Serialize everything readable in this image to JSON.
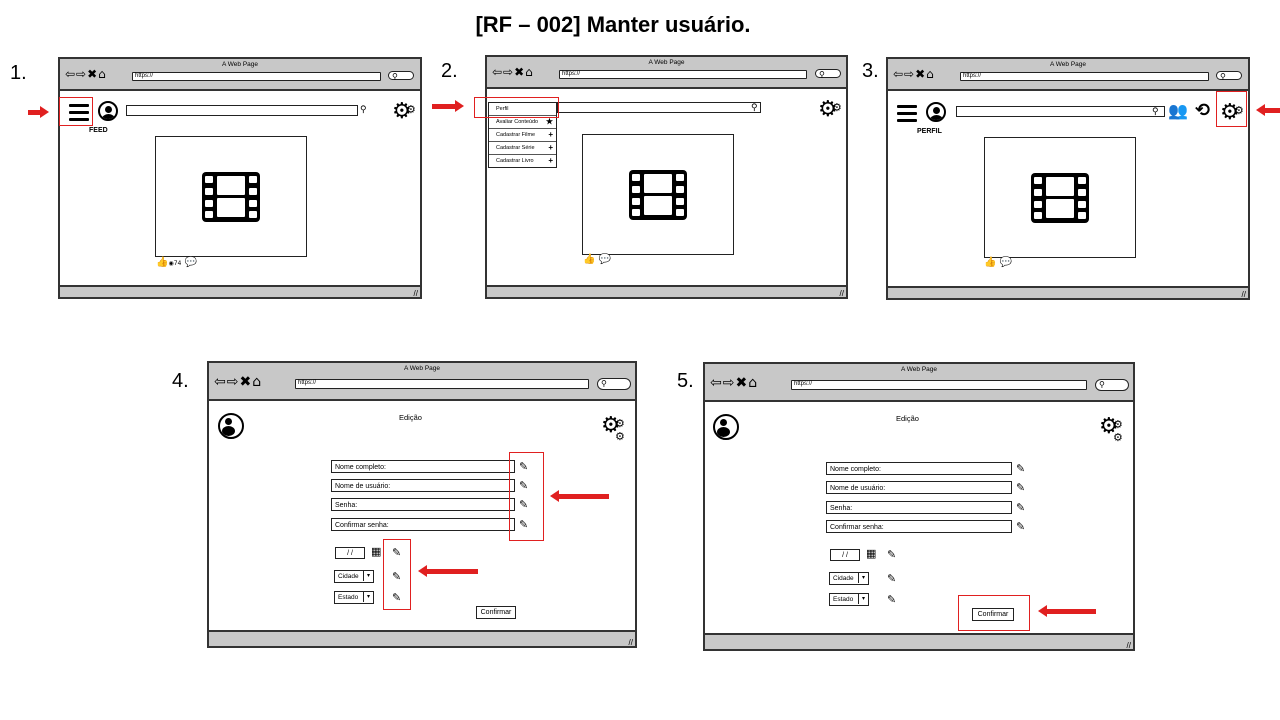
{
  "title": "[RF – 002] Manter usuário.",
  "steps": {
    "s1": "1.",
    "s2": "2.",
    "s3": "3.",
    "s4": "4.",
    "s5": "5."
  },
  "browser": {
    "window_title": "A Web Page",
    "url": "https://",
    "nav_icons": "⇦⇨✖⌂",
    "resize_glyph": "//"
  },
  "screen1": {
    "label": "FEED",
    "likes_count": "74"
  },
  "screen2": {
    "menu_items": [
      {
        "label": "Perfil",
        "icon": ""
      },
      {
        "label": "Avaliar Conteúdo",
        "icon": "★"
      },
      {
        "label": "Cadastrar Filme",
        "icon": "+"
      },
      {
        "label": "Cadastrar Série",
        "icon": "+"
      },
      {
        "label": "Cadastrar Livro",
        "icon": "+"
      }
    ]
  },
  "screen3": {
    "label": "PERFIL"
  },
  "edit_screen": {
    "title": "Edição",
    "fields": [
      "Nome completo:",
      "Nome de usuário:",
      "Senha:",
      "Confirmar senha:"
    ],
    "date_placeholder": "/ /",
    "city_select": "Cidade",
    "state_select": "Estado",
    "confirm_button": "Confirmar"
  },
  "icons": [
    "hamburger-menu-icon",
    "avatar-icon",
    "search-icon",
    "gear-icon",
    "film-icon",
    "like-icon",
    "comment-icon",
    "people-icon",
    "history-icon",
    "pencil-icon",
    "calendar-icon",
    "star-icon",
    "plus-icon"
  ],
  "colors": {
    "highlight": "#e02020",
    "browser_chrome": "#c8c8c8"
  }
}
